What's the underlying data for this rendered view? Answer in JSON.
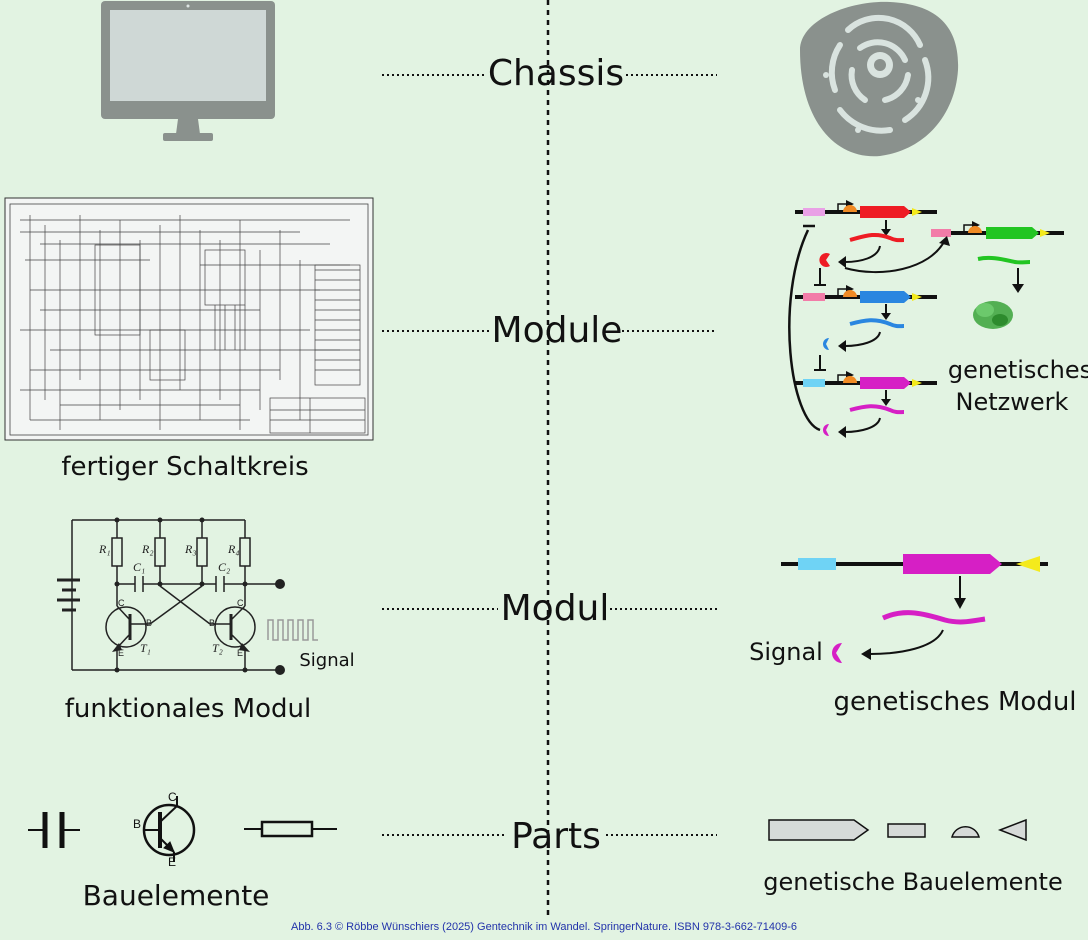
{
  "layers": {
    "chassis": "Chassis",
    "module": "Module",
    "modul": "Modul",
    "parts": "Parts"
  },
  "left": {
    "circuit_caption": "fertiger Schaltkreis",
    "module_caption": "funktionales Modul",
    "signal": "Signal",
    "parts_caption": "Bauelemente",
    "resistors": [
      "R₁",
      "R₂",
      "R₃",
      "R₄"
    ],
    "capacitors": [
      "C₁",
      "C₂"
    ],
    "transistors": [
      "T₁",
      "T₂"
    ],
    "pins": {
      "c": "C",
      "b": "B",
      "e": "E"
    }
  },
  "right": {
    "network_caption_1": "genetisches",
    "network_caption_2": "Netzwerk",
    "module_caption": "genetisches Modul",
    "signal": "Signal",
    "parts_caption": "genetische Bauelemente"
  },
  "credit": "Abb. 6.3 © Röbbe Wünschiers (2025) Gentechnik im Wandel. SpringerNature. ISBN 978-3-662-71409-6",
  "colors": {
    "background": "#e2f3e2",
    "gray_icon": "#8a918d",
    "red": "#ee1c24",
    "green": "#22c522",
    "blue": "#2a86e0",
    "magenta": "#d61fc5",
    "cyan": "#6fd3f5",
    "pink": "#f27ca8",
    "yellow": "#f4ea1c",
    "orange": "#f08a24",
    "credit": "#2233aa"
  }
}
